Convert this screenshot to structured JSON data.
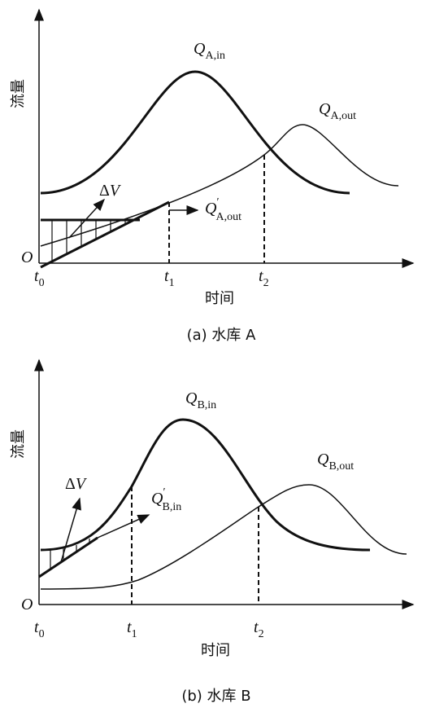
{
  "panels": [
    {
      "y_label": "流量",
      "x_label": "时间",
      "origin": "O",
      "ticks": [
        {
          "base": "t",
          "sub": "0"
        },
        {
          "base": "t",
          "sub": "1"
        },
        {
          "base": "t",
          "sub": "2"
        }
      ],
      "curves": [
        {
          "base": "Q",
          "sub": "A,in"
        },
        {
          "base": "Q",
          "sub": "A,out"
        },
        {
          "base": "Q",
          "prime": "′",
          "sub": "A,out"
        }
      ],
      "volume": {
        "delta": "Δ",
        "var": "V"
      },
      "caption": "(a) 水库 A"
    },
    {
      "y_label": "流量",
      "x_label": "时间",
      "origin": "O",
      "ticks": [
        {
          "base": "t",
          "sub": "0"
        },
        {
          "base": "t",
          "sub": "1"
        },
        {
          "base": "t",
          "sub": "2"
        }
      ],
      "curves": [
        {
          "base": "Q",
          "sub": "B,in"
        },
        {
          "base": "Q",
          "sub": "B,out"
        },
        {
          "base": "Q",
          "prime": "′",
          "sub": "B,in"
        }
      ],
      "volume": {
        "delta": "Δ",
        "var": "V"
      },
      "caption": "(b) 水库 B"
    }
  ]
}
